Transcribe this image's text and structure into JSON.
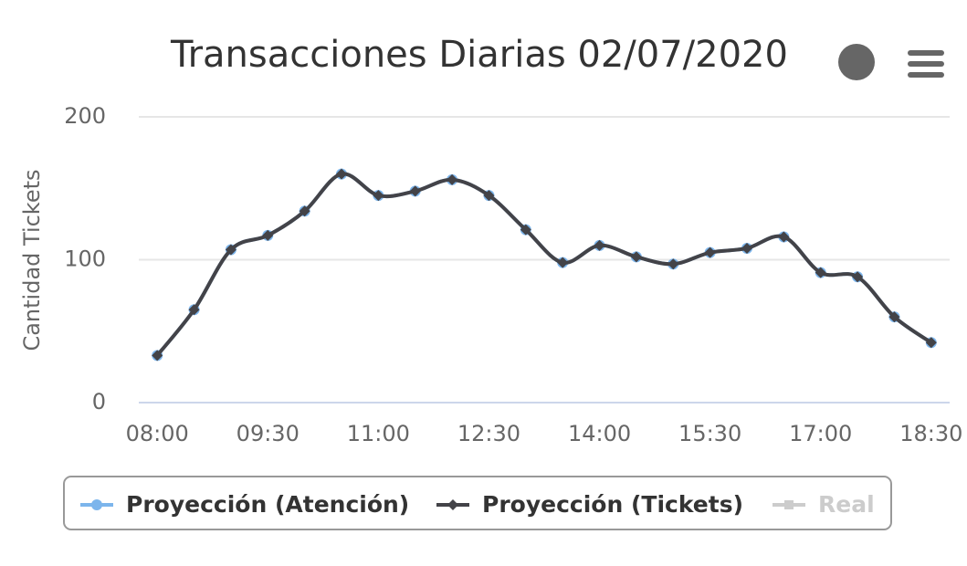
{
  "chart_data": {
    "type": "line",
    "title": "Transacciones Diarias 02/07/2020",
    "y_label": "Cantidad Tickets",
    "categories": [
      "08:00",
      null,
      null,
      "09:30",
      null,
      null,
      "11:00",
      null,
      null,
      "12:30",
      null,
      null,
      "14:00",
      null,
      null,
      "15:30",
      null,
      null,
      "17:00",
      null,
      null,
      "18:30"
    ],
    "series": [
      {
        "name": "Proyección (Atención)",
        "color": "#7cb5ec",
        "marker": "circle",
        "visible": true,
        "values": [
          33,
          65,
          107,
          117,
          134,
          160,
          145,
          148,
          156,
          145,
          121,
          98,
          110,
          102,
          97,
          105,
          108,
          116,
          91,
          88,
          60,
          42
        ]
      },
      {
        "name": "Proyección (Tickets)",
        "color": "#434348",
        "marker": "diamond",
        "visible": true,
        "values": [
          33,
          65,
          107,
          117,
          134,
          160,
          145,
          148,
          156,
          145,
          121,
          98,
          110,
          102,
          97,
          105,
          108,
          116,
          91,
          88,
          60,
          42
        ]
      },
      {
        "name": "Real",
        "color": "#cccccc",
        "marker": "square",
        "visible": false,
        "values": [
          null,
          null,
          null,
          null,
          null,
          null,
          null,
          null,
          null,
          null,
          null,
          null,
          null,
          null,
          null,
          null,
          null,
          null,
          null,
          null,
          null,
          null
        ]
      }
    ],
    "ylim": [
      0,
      200
    ],
    "yticks": [
      0,
      100,
      200
    ],
    "grid": true,
    "smooth": true,
    "legend": "bottom"
  }
}
